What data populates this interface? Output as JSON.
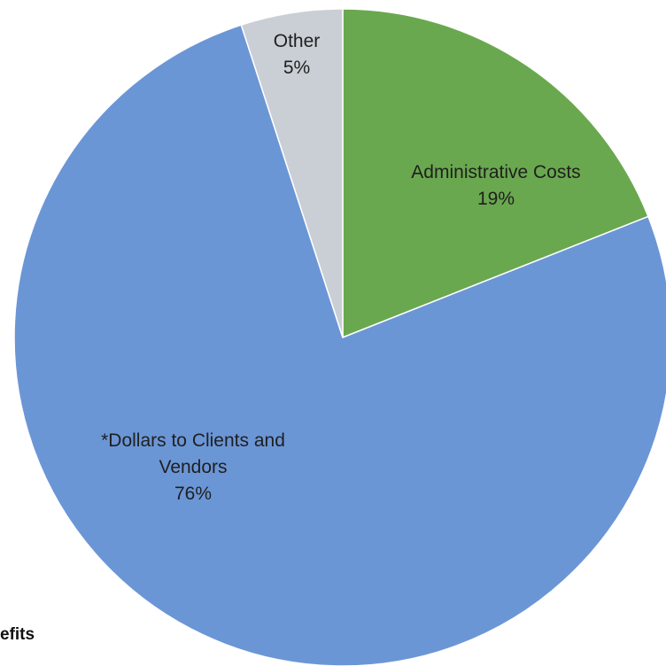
{
  "chart_data": {
    "type": "pie",
    "start_angle_deg": 0,
    "direction": "clockwise",
    "slices": [
      {
        "label": "Administrative Costs",
        "label_lines": [
          "Administrative Costs",
          "19%"
        ],
        "value": 19,
        "color": "#6aa84f"
      },
      {
        "label": "*Dollars to Clients and Vendors",
        "label_lines": [
          "*Dollars to Clients and",
          "Vendors",
          "76%"
        ],
        "value": 76,
        "color": "#6b96d6"
      },
      {
        "label": "Other",
        "label_lines": [
          "Other",
          "5%"
        ],
        "value": 5,
        "color": "#c9cfd4"
      }
    ]
  },
  "footnote": "efits"
}
